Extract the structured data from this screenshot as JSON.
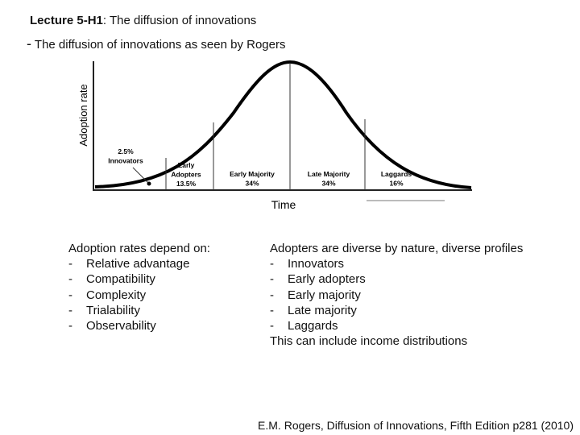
{
  "header": {
    "title_bold": "Lecture 5-H1",
    "title_rest": ": The diffusion of innovations",
    "bullet": "-",
    "subtitle": "The diffusion of innovations as seen by Rogers"
  },
  "diagram": {
    "y_axis_label": "Adoption rate",
    "x_axis_label": "Time",
    "segments": [
      {
        "lines": [
          "2.5%",
          "Innovators"
        ]
      },
      {
        "lines": [
          "Early",
          "Adopters",
          "13.5%"
        ]
      },
      {
        "lines": [
          "Early Majority",
          "34%"
        ]
      },
      {
        "lines": [
          "Late Majority",
          "34%"
        ]
      },
      {
        "lines": [
          "Laggards",
          "16%"
        ]
      }
    ]
  },
  "left": {
    "heading": "Adoption rates depend on:",
    "items": [
      "Relative advantage",
      "Compatibility",
      "Complexity",
      "Trialability",
      "Observability"
    ]
  },
  "right": {
    "heading": "Adopters are diverse by nature, diverse profiles",
    "items": [
      "Innovators",
      "Early adopters",
      "Early majority",
      "Late majority",
      "Laggards"
    ],
    "footer": "This can include income distributions"
  },
  "citation": "E.M. Rogers, Diffusion of Innovations, Fifth Edition p281 (2010)"
}
